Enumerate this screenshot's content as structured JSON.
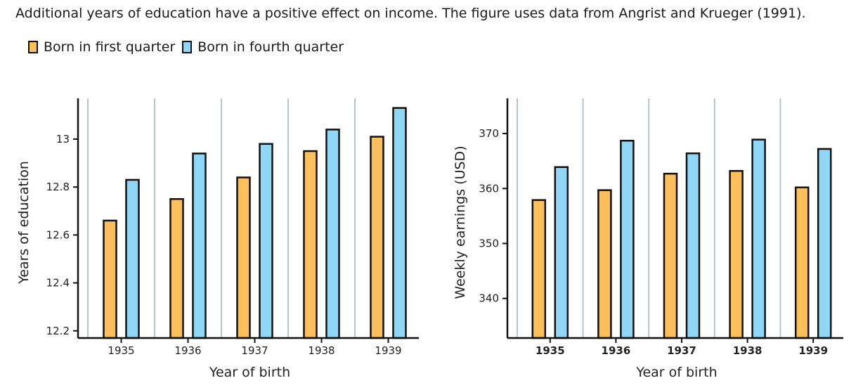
{
  "caption": "Additional years of education have a positive effect on income. The figure uses data from Angrist and Krueger (1991).",
  "colors": {
    "q1": "#fdbf5a",
    "q4": "#8fd6f7",
    "grid": "#bcc3c8",
    "outline": "#111111"
  },
  "legend": [
    {
      "label": "Born in first quarter",
      "color": "#fdbf5a"
    },
    {
      "label": "Born in fourth quarter",
      "color": "#8fd6f7"
    }
  ],
  "chart_data": [
    {
      "type": "bar",
      "categories": [
        "1935",
        "1936",
        "1937",
        "1938",
        "1939"
      ],
      "series": [
        {
          "name": "Born in first quarter",
          "values": [
            12.66,
            12.75,
            12.84,
            12.95,
            13.01
          ]
        },
        {
          "name": "Born in fourth quarter",
          "values": [
            12.83,
            12.94,
            12.98,
            13.04,
            13.13
          ]
        }
      ],
      "xlabel": "Year of birth",
      "ylabel": "Years of education",
      "yticks": [
        "12.2",
        "12.4",
        "12.6",
        "12.8",
        "13"
      ],
      "ytick_values": [
        12.2,
        12.4,
        12.6,
        12.8,
        13.0
      ],
      "ylim": [
        12.17,
        13.17
      ]
    },
    {
      "type": "bar",
      "categories": [
        "1935",
        "1936",
        "1937",
        "1938",
        "1939"
      ],
      "series": [
        {
          "name": "Born in first quarter",
          "values": [
            357.9,
            359.7,
            362.7,
            363.2,
            360.2
          ]
        },
        {
          "name": "Born in fourth quarter",
          "values": [
            363.9,
            368.7,
            366.4,
            368.9,
            367.2
          ]
        }
      ],
      "xlabel": "Year of birth",
      "ylabel": "Weekly earnings (USD)",
      "yticks": [
        "340",
        "350",
        "360",
        "370"
      ],
      "ytick_values": [
        340,
        350,
        360,
        370
      ],
      "ylim": [
        332.8,
        376.4
      ]
    }
  ]
}
